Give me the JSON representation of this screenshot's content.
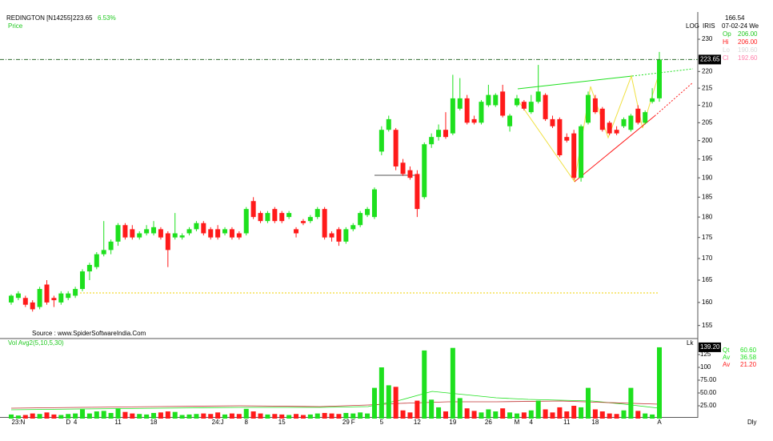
{
  "chart_data": {
    "type": "candlestick",
    "title": "REDINGTON [N14255]",
    "last": 223.65,
    "change": "6.53%",
    "series_label": "Price",
    "scale_label": "LOG",
    "tool_label": "IRIS",
    "source": "Source : www.SpiderSoftwareIndia.Com",
    "log_scale": true,
    "up_color": "#1ee01e",
    "down_color": "#ff1a1a",
    "categories": [
      null,
      "23:N",
      null,
      null,
      null,
      null,
      null,
      null,
      "D",
      "4",
      null,
      null,
      null,
      null,
      null,
      "11",
      null,
      null,
      null,
      null,
      "18",
      null,
      null,
      null,
      null,
      null,
      null,
      null,
      null,
      "24:J",
      null,
      null,
      null,
      "8",
      null,
      null,
      null,
      null,
      "15",
      null,
      null,
      null,
      null,
      null,
      null,
      null,
      null,
      "29",
      "F",
      null,
      null,
      null,
      "5",
      null,
      null,
      null,
      null,
      "12",
      null,
      null,
      null,
      null,
      "19",
      null,
      null,
      null,
      null,
      "26",
      null,
      null,
      null,
      "M",
      null,
      "4",
      null,
      null,
      null,
      null,
      "11",
      null,
      null,
      null,
      "18",
      null,
      null,
      null,
      null,
      null,
      null,
      null,
      null,
      "A"
    ],
    "open": [
      160,
      161,
      161,
      160,
      159,
      164,
      161,
      160,
      161,
      161.5,
      163,
      167,
      168,
      171,
      172,
      174,
      178,
      177,
      175,
      176,
      176,
      177,
      176,
      175,
      175,
      176,
      177,
      178.5,
      177,
      177,
      176,
      177,
      176,
      176,
      184,
      181,
      179,
      182,
      181,
      180,
      177,
      179,
      179,
      180,
      182,
      176,
      177,
      174,
      177,
      178,
      180.5,
      180,
      197,
      203,
      203,
      194,
      192,
      191,
      185,
      199,
      201,
      203,
      202,
      209,
      212,
      206,
      205,
      210,
      210,
      214,
      204,
      210,
      211,
      208,
      211,
      213,
      206,
      206,
      201,
      202,
      190,
      205,
      212,
      209,
      205,
      203,
      204,
      203,
      209,
      205,
      211,
      212
    ],
    "high": [
      161.8,
      162.5,
      161.5,
      160.5,
      163.5,
      165,
      161.5,
      162.5,
      162.5,
      163.5,
      167.5,
      169,
      171.5,
      179,
      174.5,
      178.5,
      178.5,
      178,
      176.5,
      178,
      179,
      177.5,
      176.5,
      181,
      176,
      177.5,
      179,
      179,
      177.5,
      178,
      177.5,
      177.5,
      176.5,
      182.5,
      185,
      181.5,
      181.5,
      182.5,
      181.5,
      181.5,
      177.5,
      179.5,
      180.5,
      182.5,
      182.5,
      176.5,
      177.5,
      177.5,
      178.5,
      181.5,
      182.5,
      187.5,
      204,
      207,
      203.5,
      195,
      193,
      192,
      199.5,
      202,
      204.5,
      208,
      219,
      218,
      213,
      207,
      211.5,
      216,
      213.5,
      216,
      207.5,
      213,
      211.5,
      213,
      222,
      213.5,
      207,
      206.5,
      202,
      203,
      204.5,
      214,
      213,
      209.5,
      205.5,
      204,
      206.5,
      207.5,
      210,
      208.5,
      215,
      226
    ],
    "low": [
      159.5,
      160.5,
      159,
      158,
      158.5,
      159.5,
      159,
      159.5,
      160.5,
      161,
      162.5,
      165,
      167.5,
      170.5,
      171,
      173,
      174.5,
      174.5,
      174.5,
      175.5,
      175.5,
      174.5,
      168,
      174.5,
      174.5,
      175.5,
      176.5,
      175.5,
      174.5,
      174.5,
      175.5,
      174.5,
      174.5,
      175.5,
      179.5,
      178.5,
      178.5,
      178.5,
      178.5,
      179.5,
      175,
      178,
      178.5,
      179.5,
      174.5,
      174,
      173,
      173.5,
      176.5,
      177.5,
      180,
      179.5,
      196,
      202.5,
      192,
      190.5,
      189.5,
      180,
      184.5,
      198,
      200,
      200.5,
      201.5,
      208.5,
      204.5,
      204.5,
      204.5,
      209.5,
      209.5,
      206.5,
      202.5,
      209.5,
      208.5,
      207.5,
      210.5,
      205.5,
      203.5,
      195.5,
      199.5,
      189.5,
      189,
      204.5,
      207.5,
      202.5,
      201.5,
      201.5,
      203.5,
      202.5,
      204.5,
      204.5,
      210.5,
      211
    ],
    "close": [
      161.5,
      162,
      159.5,
      158.5,
      163,
      160,
      160.5,
      162,
      162,
      163,
      167,
      168.5,
      171,
      172,
      174,
      178,
      175,
      175,
      176,
      177,
      177.5,
      175,
      172,
      176,
      175.5,
      177,
      178.5,
      176,
      175,
      175,
      177,
      175,
      175,
      182,
      180,
      179,
      181,
      179,
      179,
      181,
      176,
      178.5,
      180,
      182,
      175,
      175,
      174,
      177,
      178,
      181,
      182,
      187,
      203,
      206,
      193,
      191,
      190,
      182,
      199,
      201,
      203,
      201,
      212,
      212,
      205,
      205,
      211,
      213,
      213,
      207,
      207,
      212,
      209,
      211,
      214,
      206,
      204,
      196,
      200,
      190,
      204,
      213,
      208,
      203,
      202,
      202,
      206,
      207,
      205,
      208,
      212,
      223.65
    ],
    "volume": [
      8,
      6,
      7,
      10,
      9,
      12,
      8,
      7,
      9,
      10,
      18,
      10,
      14,
      15,
      11,
      20,
      13,
      10,
      9,
      8,
      11,
      12,
      14,
      13,
      7,
      8,
      9,
      10,
      9,
      12,
      8,
      10,
      9,
      19,
      14,
      10,
      8,
      9,
      8,
      7,
      9,
      7,
      8,
      10,
      11,
      10,
      9,
      11,
      10,
      12,
      10,
      60,
      100,
      65,
      62,
      16,
      12,
      35,
      133,
      37,
      22,
      14,
      138,
      40,
      20,
      15,
      12,
      18,
      14,
      20,
      12,
      10,
      12,
      16,
      35,
      18,
      12,
      22,
      14,
      25,
      22,
      60,
      18,
      14,
      10,
      9,
      16,
      60,
      15,
      10,
      8,
      139.2
    ],
    "ylim": [
      152.4,
      238.8
    ],
    "yticks": [
      155,
      160,
      165,
      170,
      175,
      180,
      185,
      190,
      195,
      200,
      205,
      210,
      215,
      220,
      230
    ],
    "volume_title": "Vol Avg2(5,10,5,30)",
    "volume_unit": "Lk",
    "vylim": [
      0,
      154.7
    ],
    "vyticks": [
      {
        "value": 25,
        "label": "25.00"
      },
      {
        "value": 50,
        "label": "50.00"
      },
      {
        "value": 75,
        "label": "75.00"
      },
      100,
      125
    ],
    "volume_last": {
      "value": 139.2,
      "label": "139.20"
    },
    "volume_legend": [
      {
        "name": "Qt",
        "value": "60.60",
        "color": "#1ee01e"
      },
      {
        "name": "Av",
        "value": "36.58",
        "color": "#1ee01e"
      },
      {
        "name": "Av",
        "value": "21.20",
        "color": "#ff1a1a"
      }
    ],
    "cursor_price": 166.54,
    "cursor_date": "07-02-24 We",
    "cursor_ohlc": [
      {
        "name": "Op",
        "value": "206.00",
        "color": "#1ec81e"
      },
      {
        "name": "Hi",
        "value": "206.00",
        "color": "#ff1a1a"
      },
      {
        "name": "Lo",
        "value": "190.60",
        "color": "#d8d8d8"
      },
      {
        "name": "Cl",
        "value": "192.60",
        "color": "#ff7faa"
      }
    ],
    "period": "Dly"
  }
}
